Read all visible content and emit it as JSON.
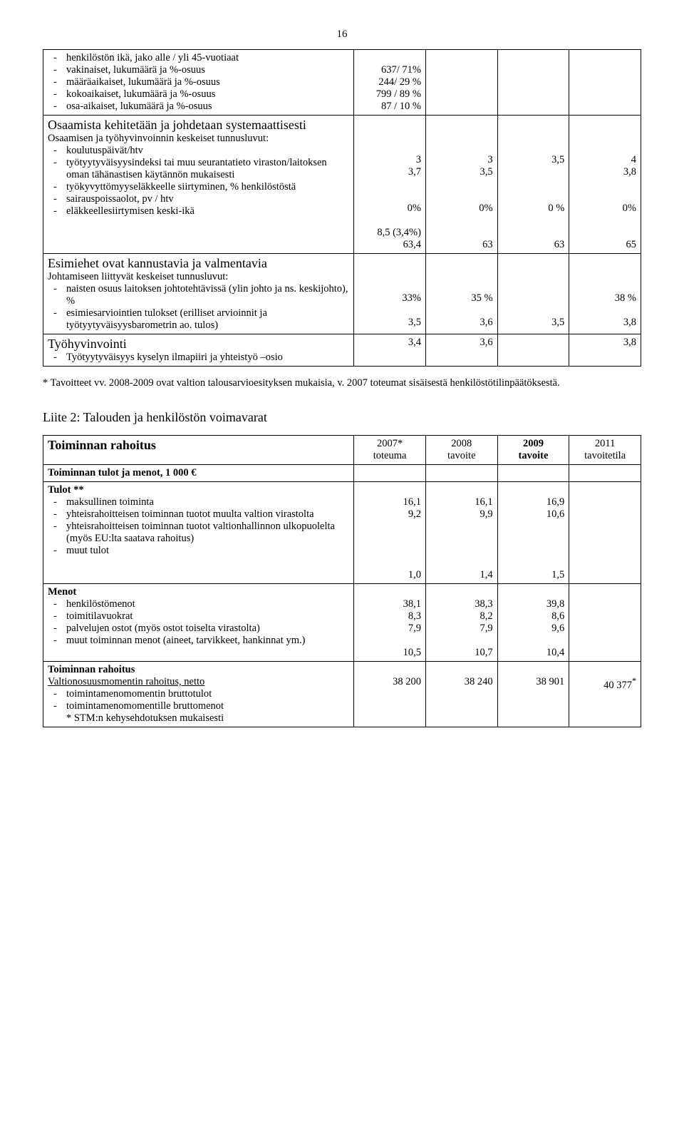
{
  "pageNumber": "16",
  "table1": {
    "row_age": {
      "label": "henkilöstön ikä, jako alle / yli 45-vuotiaat",
      "v1": "",
      "v2": "",
      "v3": "",
      "v4": ""
    },
    "row_vak": {
      "label": "vakinaiset, lukumäärä ja %-osuus",
      "v1": "637/ 71%",
      "v2": "",
      "v3": "",
      "v4": ""
    },
    "row_maara": {
      "label": "määräaikaiset, lukumäärä ja %-osuus",
      "v1": "244/ 29 %",
      "v2": "",
      "v3": "",
      "v4": ""
    },
    "row_koko": {
      "label": "kokoaikaiset, lukumäärä ja %-osuus",
      "v1": "799 / 89 %",
      "v2": "",
      "v3": "",
      "v4": ""
    },
    "row_osa": {
      "label": "osa-aikaiset, lukumäärä ja %-osuus",
      "v1": "87 / 10 %",
      "v2": "",
      "v3": "",
      "v4": ""
    },
    "section_osaamista": "Osaamista kehitetään ja johdetaan systemaattisesti",
    "sub_osaamisen": "Osaamisen ja työhyvinvoinnin keskeiset tunnusluvut:",
    "row_koulutus": {
      "label": "koulutuspäivät/htv",
      "v1": "3",
      "v2": "3",
      "v3": "3,5",
      "v4": "4"
    },
    "row_tyotyyt": {
      "label": "työtyytyväisyysindeksi tai muu seurantatieto viraston/laitoksen oman tähänastisen käytännön mukaisesti",
      "v1": "3,7",
      "v2": "3,5",
      "v3": "",
      "v4": "3,8"
    },
    "row_tyokyv": {
      "label": "työkyvyttömyyseläkkeelle siirtyminen, % henkilöstöstä",
      "v1": "0%",
      "v2": "0%",
      "v3": "0 %",
      "v4": "0%"
    },
    "row_saira": {
      "label": "sairauspoissaolot, pv / htv",
      "v1": "8,5 (3,4%)",
      "v2": "",
      "v3": "",
      "v4": ""
    },
    "row_elakk": {
      "label": "eläkkeellesiirtymisen keski-ikä",
      "v1": "63,4",
      "v2": "63",
      "v3": "63",
      "v4": "65"
    },
    "section_esimies": "Esimiehet ovat kannustavia ja valmentavia",
    "sub_johtamiseen": "Johtamiseen liittyvät keskeiset tunnusluvut:",
    "row_naisten": {
      "label": "naisten osuus laitoksen johtotehtävissä (ylin johto ja ns. keskijohto), %",
      "v1": "33%",
      "v2": "35 %",
      "v3": "",
      "v4": "38 %"
    },
    "row_esimies": {
      "label": "esimiesarviointien tulokset (erilliset arvioinnit ja työtyytyväisyysbarometrin ao. tulos)",
      "v1": "3,5",
      "v2": "3,6",
      "v3": "3,5",
      "v4": "3,8"
    },
    "section_tyohyvin": "Työhyvinvointi",
    "row_tyotyytyv": {
      "label": "Työtyytyväisyys kyselyn ilmapiiri ja yhteistyö –osio",
      "v1": "3,4",
      "v2": "3,6",
      "v3": "",
      "v4": "3,8"
    }
  },
  "footnote1": "* Tavoitteet vv. 2008-2009 ovat valtion talousarvioesityksen mukaisia, v. 2007 toteumat sisäisestä henkilöstötilinpäätöksestä.",
  "liite2Title": "Liite 2:  Talouden ja henkilöstön voimavarat",
  "table2": {
    "headerMain": "Toiminnan rahoitus",
    "headers": {
      "c1a": "2007*",
      "c1b": "toteuma",
      "c2a": "2008",
      "c2b": "tavoite",
      "c3a": "2009",
      "c3b": "tavoite",
      "c4a": "2011",
      "c4b": "tavoitetila"
    },
    "row_tulotmenot": "Toiminnan tulot ja menot, 1 000 €",
    "row_tulot": "Tulot **",
    "row_maks": {
      "label": "maksullinen toiminta",
      "v1": "16,1",
      "v2": "16,1",
      "v3": "16,9",
      "v4": ""
    },
    "row_yht1": {
      "label": "yhteisrahoitteisen toiminnan tuotot muulta valtion virastolta",
      "v1": "9,2",
      "v2": "9,9",
      "v3": "10,6",
      "v4": ""
    },
    "row_yht2": {
      "label": "yhteisrahoitteisen toiminnan tuotot valtionhallinnon ulkopuolelta (myös EU:lta saatava rahoitus)",
      "v1": "",
      "v2": "",
      "v3": "",
      "v4": ""
    },
    "row_muut1": {
      "label": "muut tulot",
      "v1": "1,0",
      "v2": "1,4",
      "v3": "1,5",
      "v4": ""
    },
    "row_menot": "Menot",
    "row_henk": {
      "label": "henkilöstömenot",
      "v1": "38,1",
      "v2": "38,3",
      "v3": "39,8",
      "v4": ""
    },
    "row_toim": {
      "label": "toimitilavuokrat",
      "v1": "8,3",
      "v2": "8,2",
      "v3": "8,6",
      "v4": ""
    },
    "row_palv": {
      "label": "palvelujen ostot (myös ostot toiselta virastolta)",
      "v1": "7,9",
      "v2": "7,9",
      "v3": "9,6",
      "v4": ""
    },
    "row_muut2": {
      "label": "muut toiminnan menot (aineet, tarvikkeet, hankinnat ym.)",
      "v1": "10,5",
      "v2": "10,7",
      "v3": "10,4",
      "v4": ""
    },
    "row_rahoitus": "Toiminnan rahoitus",
    "row_valtio": {
      "label": "Valtionosuusmomentin rahoitus, netto",
      "v1": "38 200",
      "v2": "38 240",
      "v3": "38 901",
      "v4": "40 377",
      "v4sup": "*"
    },
    "row_brutto1": {
      "label": "toimintamenomomentin bruttotulot"
    },
    "row_brutto2": {
      "label": "toimintamenomomentille bruttomenot"
    },
    "row_stm": {
      "label": "* STM:n kehysehdotuksen mukaisesti"
    }
  }
}
